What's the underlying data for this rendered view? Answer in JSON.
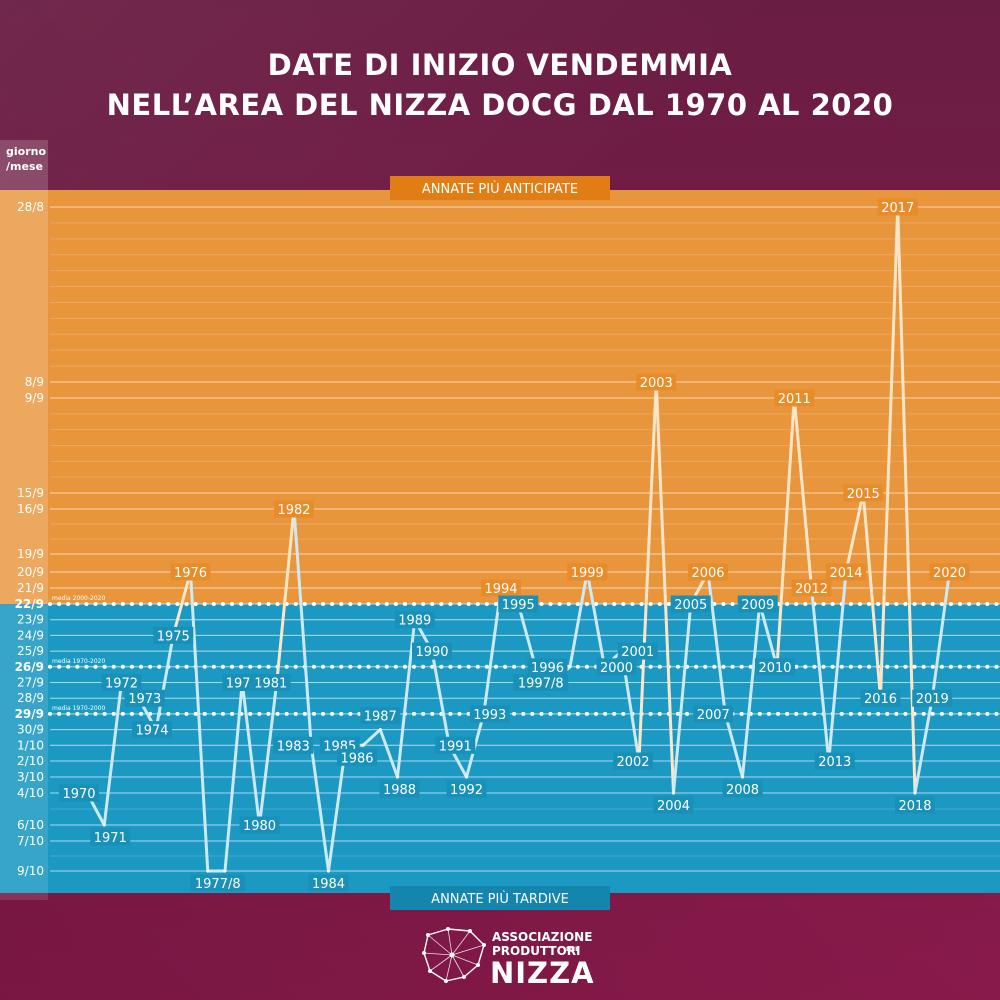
{
  "header": {
    "title_line1": "DATE DI INIZIO VENDEMMIA",
    "title_line2": "NELL’AREA DEL NIZZA DOCG DAL 1970 AL 2020",
    "unit_line1": "giorno",
    "unit_line2": "/mese"
  },
  "bands": {
    "early_label": "ANNATE PIÙ ANTICIPATE",
    "late_label": "ANNATE PIÙ TARDIVE"
  },
  "logo": {
    "line1": "ASSOCIAZIONE",
    "line2": "PRODUTTORI",
    "del": "DEL",
    "line3": "NIZZA"
  },
  "colors": {
    "early": "#e8953c",
    "late": "#1b99c2",
    "background": "#7a1c47",
    "line": "#ffffff",
    "early_label": "#e07d14",
    "late_label": "#1486ad"
  },
  "chart_data": {
    "type": "line",
    "title": "DATE DI INIZIO VENDEMMIA NELL’AREA DEL NIZZA DOCG DAL 1970 AL 2020",
    "ylabel": "giorno/mese",
    "y_reversed": true,
    "ylim": [
      "28/8",
      "9/10"
    ],
    "y_ticks": [
      "28/8",
      "8/9",
      "9/9",
      "15/9",
      "16/9",
      "19/9",
      "20/9",
      "21/9",
      "22/9",
      "23/9",
      "24/9",
      "25/9",
      "26/9",
      "27/9",
      "28/9",
      "29/9",
      "30/9",
      "1/10",
      "2/10",
      "3/10",
      "4/10",
      "6/10",
      "7/10",
      "9/10"
    ],
    "reference_lines": [
      {
        "label": "media 2000-2020",
        "value": "22/9"
      },
      {
        "label": "media 1970-2020",
        "value": "26/9"
      },
      {
        "label": "media 1970-2000",
        "value": "29/9"
      }
    ],
    "points": [
      {
        "year": 1970,
        "label": "1970",
        "date": "4/10"
      },
      {
        "year": 1971,
        "label": "1971",
        "date": "6/10"
      },
      {
        "year": 1972,
        "label": "1972",
        "date": "27/9"
      },
      {
        "year": 1973,
        "label": "1973",
        "date": "28/9"
      },
      {
        "year": 1974,
        "label": "1974",
        "date": "30/9"
      },
      {
        "year": 1975,
        "label": "1975",
        "date": "24/9"
      },
      {
        "year": 1976,
        "label": "1976",
        "date": "20/9"
      },
      {
        "year": 1977,
        "label": "1977/8",
        "date": "9/10"
      },
      {
        "year": 1978,
        "label": "",
        "date": "9/10"
      },
      {
        "year": 1979,
        "label": "1979",
        "date": "27/9"
      },
      {
        "year": 1980,
        "label": "1980",
        "date": "6/10"
      },
      {
        "year": 1981,
        "label": "1981",
        "date": "27/9"
      },
      {
        "year": 1982,
        "label": "1982",
        "date": "16/9"
      },
      {
        "year": 1983,
        "label": "1983",
        "date": "1/10"
      },
      {
        "year": 1984,
        "label": "1984",
        "date": "9/10"
      },
      {
        "year": 1985,
        "label": "1985",
        "date": "1/10"
      },
      {
        "year": 1986,
        "label": "1986",
        "date": "1/10"
      },
      {
        "year": 1987,
        "label": "1987",
        "date": "30/9"
      },
      {
        "year": 1988,
        "label": "1988",
        "date": "3/10"
      },
      {
        "year": 1989,
        "label": "1989",
        "date": "23/9"
      },
      {
        "year": 1990,
        "label": "1990",
        "date": "25/9"
      },
      {
        "year": 1991,
        "label": "1991",
        "date": "1/10"
      },
      {
        "year": 1992,
        "label": "1992",
        "date": "3/10"
      },
      {
        "year": 1993,
        "label": "1993",
        "date": "29/9"
      },
      {
        "year": 1994,
        "label": "1994",
        "date": "21/9"
      },
      {
        "year": 1995,
        "label": "1995",
        "date": "22/9"
      },
      {
        "year": 1996,
        "label": "1996",
        "date": "26/9"
      },
      {
        "year": 1997,
        "label": "1997/8",
        "date": "27/9"
      },
      {
        "year": 1998,
        "label": "",
        "date": "26/9"
      },
      {
        "year": 1999,
        "label": "1999",
        "date": "20/9"
      },
      {
        "year": 2000,
        "label": "2000",
        "date": "26/9"
      },
      {
        "year": 2001,
        "label": "2001",
        "date": "25/9"
      },
      {
        "year": 2002,
        "label": "2002",
        "date": "2/10"
      },
      {
        "year": 2003,
        "label": "2003",
        "date": "8/9"
      },
      {
        "year": 2004,
        "label": "2004",
        "date": "4/10"
      },
      {
        "year": 2005,
        "label": "2005",
        "date": "22/9"
      },
      {
        "year": 2006,
        "label": "2006",
        "date": "20/9"
      },
      {
        "year": 2007,
        "label": "2007",
        "date": "29/9"
      },
      {
        "year": 2008,
        "label": "2008",
        "date": "3/10"
      },
      {
        "year": 2009,
        "label": "2009",
        "date": "22/9"
      },
      {
        "year": 2010,
        "label": "2010",
        "date": "26/9"
      },
      {
        "year": 2011,
        "label": "2011",
        "date": "9/9"
      },
      {
        "year": 2012,
        "label": "2012",
        "date": "21/9"
      },
      {
        "year": 2013,
        "label": "2013",
        "date": "2/10"
      },
      {
        "year": 2014,
        "label": "2014",
        "date": "20/9"
      },
      {
        "year": 2015,
        "label": "2015",
        "date": "15/9"
      },
      {
        "year": 2016,
        "label": "2016",
        "date": "28/9"
      },
      {
        "year": 2017,
        "label": "2017",
        "date": "28/8"
      },
      {
        "year": 2018,
        "label": "2018",
        "date": "4/10"
      },
      {
        "year": 2019,
        "label": "2019",
        "date": "28/9"
      },
      {
        "year": 2020,
        "label": "2020",
        "date": "20/9"
      }
    ]
  }
}
